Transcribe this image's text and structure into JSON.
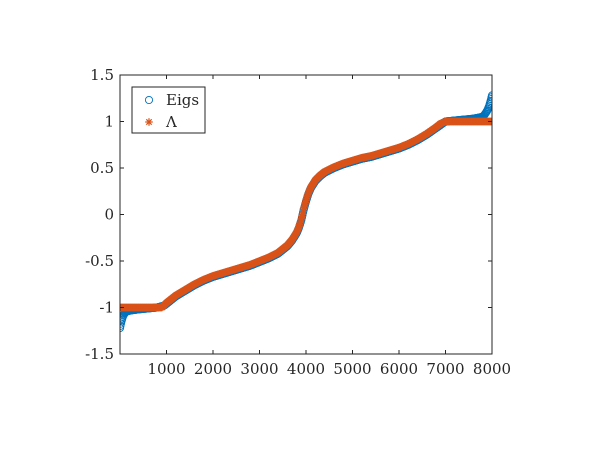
{
  "chart_data": {
    "type": "scatter",
    "title": "",
    "xlabel": "",
    "ylabel": "",
    "xlim": [
      0,
      8000
    ],
    "ylim": [
      -1.5,
      1.5
    ],
    "grid": false,
    "legend_placement": "top-left",
    "x_ticks": [
      1000,
      2000,
      3000,
      4000,
      5000,
      6000,
      7000,
      8000
    ],
    "x_tick_labels": [
      "1000",
      "2000",
      "3000",
      "4000",
      "5000",
      "6000",
      "7000",
      "8000"
    ],
    "y_ticks": [
      -1.5,
      -1,
      -0.5,
      0,
      0.5,
      1,
      1.5
    ],
    "y_tick_labels": [
      "-1.5",
      "-1",
      "-0.5",
      "0",
      "0.5",
      "1",
      "1.5"
    ],
    "series": [
      {
        "name": "Eigs",
        "marker": "circle",
        "color": "#0072BD",
        "x": [
          0,
          30,
          60,
          100,
          150,
          250,
          400,
          600,
          800,
          950,
          1000,
          1100,
          1200,
          1400,
          1600,
          1800,
          2000,
          2200,
          2400,
          2600,
          2800,
          3000,
          3200,
          3400,
          3600,
          3700,
          3800,
          3850,
          3900,
          3950,
          4000,
          4050,
          4100,
          4150,
          4200,
          4300,
          4400,
          4600,
          4800,
          5000,
          5200,
          5400,
          5600,
          5800,
          6000,
          6200,
          6400,
          6600,
          6800,
          7000,
          7200,
          7400,
          7600,
          7700,
          7800,
          7850,
          7900,
          7940,
          7970,
          8000
        ],
        "y": [
          -1.22,
          -1.15,
          -1.1,
          -1.06,
          -1.04,
          -1.03,
          -1.02,
          -1.01,
          -1.0,
          -0.98,
          -0.96,
          -0.92,
          -0.88,
          -0.82,
          -0.76,
          -0.71,
          -0.67,
          -0.64,
          -0.61,
          -0.58,
          -0.55,
          -0.51,
          -0.47,
          -0.42,
          -0.34,
          -0.28,
          -0.2,
          -0.14,
          -0.06,
          0.05,
          0.14,
          0.22,
          0.28,
          0.32,
          0.36,
          0.41,
          0.45,
          0.5,
          0.54,
          0.57,
          0.6,
          0.62,
          0.65,
          0.68,
          0.71,
          0.75,
          0.8,
          0.86,
          0.93,
          1.0,
          1.01,
          1.02,
          1.03,
          1.04,
          1.05,
          1.08,
          1.12,
          1.17,
          1.22,
          1.28
        ]
      },
      {
        "name": "Λ",
        "marker": "asterisk",
        "color": "#D95319",
        "x": [
          0,
          100,
          200,
          300,
          400,
          500,
          600,
          700,
          800,
          900,
          1000,
          1100,
          1200,
          1400,
          1600,
          1800,
          2000,
          2200,
          2400,
          2600,
          2800,
          3000,
          3200,
          3400,
          3600,
          3700,
          3800,
          3850,
          3900,
          3950,
          4000,
          4050,
          4100,
          4150,
          4200,
          4300,
          4400,
          4600,
          4800,
          5000,
          5200,
          5400,
          5600,
          5800,
          6000,
          6200,
          6400,
          6600,
          6800,
          6900,
          7000,
          7100,
          7200,
          7300,
          7400,
          7500,
          7600,
          7700,
          7800,
          7900,
          8000
        ],
        "y": [
          -1.0,
          -1.0,
          -1.0,
          -1.0,
          -1.0,
          -1.0,
          -1.0,
          -1.0,
          -1.0,
          -1.0,
          -0.95,
          -0.91,
          -0.87,
          -0.81,
          -0.75,
          -0.7,
          -0.66,
          -0.63,
          -0.6,
          -0.57,
          -0.54,
          -0.5,
          -0.46,
          -0.41,
          -0.33,
          -0.27,
          -0.19,
          -0.13,
          -0.05,
          0.06,
          0.15,
          0.23,
          0.29,
          0.33,
          0.37,
          0.42,
          0.46,
          0.51,
          0.55,
          0.58,
          0.61,
          0.63,
          0.66,
          0.69,
          0.72,
          0.76,
          0.81,
          0.87,
          0.94,
          0.98,
          1.0,
          1.0,
          1.0,
          1.0,
          1.0,
          1.0,
          1.0,
          1.0,
          1.0,
          1.0,
          1.0
        ]
      }
    ]
  }
}
